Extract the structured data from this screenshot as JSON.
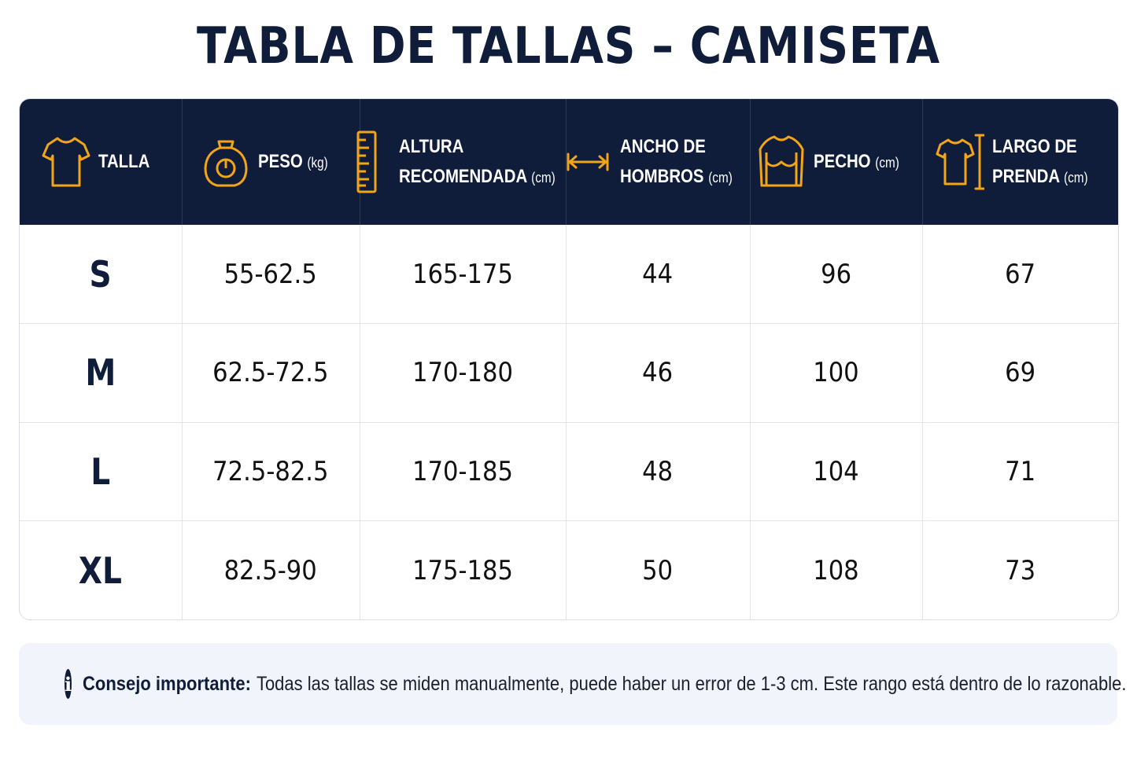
{
  "title": "TABLA DE TALLAS – CAMISETA",
  "columns": [
    {
      "line1": "TALLA",
      "line2": "",
      "unit": "",
      "icon": "tshirt-icon"
    },
    {
      "line1": "PESO",
      "line2": "",
      "unit": "(kg)",
      "icon": "weight-icon"
    },
    {
      "line1": "ALTURA",
      "line2": "RECOMENDADA",
      "unit": "(cm)",
      "icon": "ruler-icon"
    },
    {
      "line1": "ANCHO DE",
      "line2": "HOMBROS",
      "unit": "(cm)",
      "icon": "width-arrows-icon"
    },
    {
      "line1": "PECHO",
      "line2": "",
      "unit": "(cm)",
      "icon": "torso-icon"
    },
    {
      "line1": "LARGO DE",
      "line2": "PRENDA",
      "unit": "(cm)",
      "icon": "shirt-length-icon"
    }
  ],
  "rows": [
    {
      "size": "S",
      "weight": "55-62.5",
      "height": "165-175",
      "shoulders": "44",
      "chest": "96",
      "length": "67"
    },
    {
      "size": "M",
      "weight": "62.5-72.5",
      "height": "170-180",
      "shoulders": "46",
      "chest": "100",
      "length": "69"
    },
    {
      "size": "L",
      "weight": "72.5-82.5",
      "height": "170-185",
      "shoulders": "48",
      "chest": "104",
      "length": "71"
    },
    {
      "size": "XL",
      "weight": "82.5-90",
      "height": "175-185",
      "shoulders": "50",
      "chest": "108",
      "length": "73"
    }
  ],
  "note": {
    "icon": "info-icon",
    "label": "Consejo importante:",
    "text": "Todas las tallas se miden manualmente, puede haber un error de 1-3 cm. Este rango está dentro de lo razonable."
  },
  "colors": {
    "navy": "#0f1c3a",
    "accent": "#f2a516",
    "note_bg": "#f1f4fa"
  }
}
